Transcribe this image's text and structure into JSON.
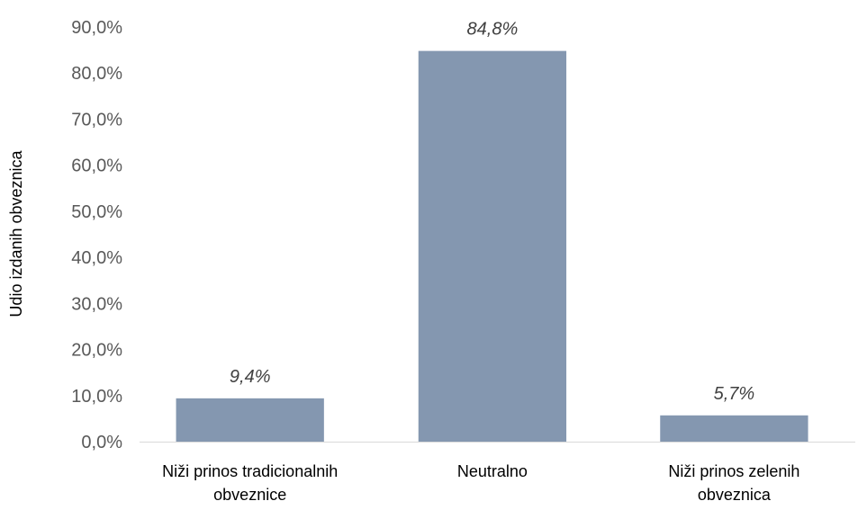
{
  "chart_data": {
    "type": "bar",
    "title": "",
    "xlabel": "",
    "ylabel": "Udio izdanih obveznica",
    "categories": [
      [
        "Niži prinos tradicionalnih",
        "obveznice"
      ],
      [
        "Neutralno"
      ],
      [
        "Niži prinos zelenih",
        "obveznica"
      ]
    ],
    "values": [
      9.4,
      84.8,
      5.7
    ],
    "data_labels": [
      "9,4%",
      "84,8%",
      "5,7%"
    ],
    "ylim": [
      0,
      90
    ],
    "yticks": [
      0,
      10,
      20,
      30,
      40,
      50,
      60,
      70,
      80,
      90
    ],
    "ytick_labels": [
      "0,0%",
      "10,0%",
      "20,0%",
      "30,0%",
      "40,0%",
      "50,0%",
      "60,0%",
      "70,0%",
      "80,0%",
      "90,0%"
    ],
    "grid": false,
    "legend": "none",
    "colors": {
      "bar": "#8497b0",
      "axis": "#d9d9d9"
    }
  }
}
